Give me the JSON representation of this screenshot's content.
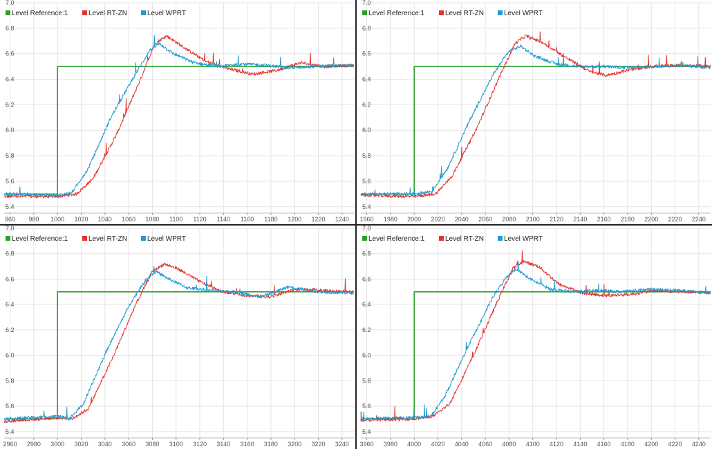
{
  "colors": {
    "reference": "#2ca02c",
    "rtzn": "#e3342f",
    "wprt": "#1f9bd1",
    "grid": "#e4e4e4",
    "divider": "#222222"
  },
  "legend": {
    "reference_label": "Level Reference:1",
    "rtzn_label": "Level RT-ZN",
    "wprt_label": "Level WPRT"
  },
  "chart_data": [
    {
      "type": "line",
      "title": "",
      "xlim": [
        955,
        1250
      ],
      "ylim": [
        5.35,
        7.0
      ],
      "x_ticks": [
        960,
        980,
        1000,
        1020,
        1040,
        1060,
        1080,
        1100,
        1120,
        1140,
        1160,
        1180,
        1200,
        1220,
        1240
      ],
      "y_ticks": [
        5.4,
        5.6,
        5.8,
        6.0,
        6.2,
        6.4,
        6.6,
        6.8,
        7.0
      ],
      "step_time": 1000,
      "series": [
        {
          "name": "Level Reference:1",
          "x": [
            955,
            1000,
            1000,
            1250
          ],
          "y": [
            5.5,
            5.5,
            6.5,
            6.5
          ]
        },
        {
          "name": "Level RT-ZN",
          "x": [
            955,
            1000,
            1016,
            1030,
            1050,
            1070,
            1082,
            1092,
            1105,
            1125,
            1145,
            1165,
            1185,
            1205,
            1225,
            1250
          ],
          "y": [
            5.48,
            5.48,
            5.5,
            5.62,
            5.97,
            6.4,
            6.68,
            6.74,
            6.66,
            6.54,
            6.48,
            6.44,
            6.47,
            6.53,
            6.5,
            6.51
          ]
        },
        {
          "name": "Level WPRT",
          "x": [
            955,
            1000,
            1012,
            1026,
            1045,
            1065,
            1078,
            1086,
            1098,
            1115,
            1135,
            1155,
            1175,
            1195,
            1215,
            1250
          ],
          "y": [
            5.5,
            5.49,
            5.51,
            5.7,
            6.1,
            6.43,
            6.63,
            6.68,
            6.6,
            6.53,
            6.5,
            6.52,
            6.51,
            6.49,
            6.5,
            6.51
          ]
        }
      ]
    },
    {
      "type": "line",
      "title": "",
      "xlim": [
        1955,
        2250
      ],
      "ylim": [
        5.35,
        7.0
      ],
      "x_ticks": [
        1960,
        1980,
        2000,
        2020,
        2040,
        2060,
        2080,
        2100,
        2120,
        2140,
        2160,
        2180,
        2200,
        2220,
        2240
      ],
      "y_ticks": [
        5.4,
        5.6,
        5.8,
        6.0,
        6.2,
        6.4,
        6.6,
        6.8,
        7.0
      ],
      "step_time": 2000,
      "series": [
        {
          "name": "Level Reference:1",
          "x": [
            1955,
            2000,
            2000,
            2250
          ],
          "y": [
            5.5,
            5.5,
            6.5,
            6.5
          ]
        },
        {
          "name": "Level RT-ZN",
          "x": [
            1955,
            2000,
            2018,
            2032,
            2052,
            2072,
            2085,
            2094,
            2108,
            2128,
            2148,
            2162,
            2180,
            2200,
            2225,
            2250
          ],
          "y": [
            5.49,
            5.48,
            5.5,
            5.64,
            6.0,
            6.42,
            6.68,
            6.74,
            6.69,
            6.57,
            6.46,
            6.43,
            6.47,
            6.5,
            6.51,
            6.5
          ]
        },
        {
          "name": "Level WPRT",
          "x": [
            1955,
            2000,
            2015,
            2028,
            2048,
            2068,
            2080,
            2090,
            2102,
            2120,
            2140,
            2160,
            2180,
            2200,
            2225,
            2250
          ],
          "y": [
            5.5,
            5.5,
            5.52,
            5.7,
            6.1,
            6.46,
            6.62,
            6.66,
            6.58,
            6.52,
            6.5,
            6.5,
            6.49,
            6.5,
            6.51,
            6.49
          ]
        }
      ]
    },
    {
      "type": "line",
      "title": "",
      "xlim": [
        2955,
        3250
      ],
      "ylim": [
        5.35,
        7.0
      ],
      "x_ticks": [
        2960,
        2980,
        3000,
        3020,
        3040,
        3060,
        3080,
        3100,
        3120,
        3140,
        3160,
        3180,
        3200,
        3220,
        3240
      ],
      "y_ticks": [
        5.4,
        5.6,
        5.8,
        6.0,
        6.2,
        6.4,
        6.6,
        6.8,
        7.0
      ],
      "step_time": 3000,
      "series": [
        {
          "name": "Level Reference:1",
          "x": [
            2955,
            3000,
            3000,
            3250
          ],
          "y": [
            5.5,
            5.5,
            6.5,
            6.5
          ]
        },
        {
          "name": "Level RT-ZN",
          "x": [
            2955,
            3000,
            3012,
            3026,
            3046,
            3066,
            3080,
            3090,
            3102,
            3120,
            3140,
            3160,
            3180,
            3200,
            3225,
            3250
          ],
          "y": [
            5.48,
            5.51,
            5.5,
            5.58,
            5.97,
            6.4,
            6.66,
            6.72,
            6.68,
            6.58,
            6.5,
            6.47,
            6.46,
            6.52,
            6.51,
            6.5
          ]
        },
        {
          "name": "Level WPRT",
          "x": [
            2955,
            3000,
            3010,
            3022,
            3042,
            3062,
            3075,
            3083,
            3094,
            3110,
            3130,
            3150,
            3172,
            3195,
            3220,
            3250
          ],
          "y": [
            5.5,
            5.52,
            5.5,
            5.62,
            6.05,
            6.42,
            6.6,
            6.66,
            6.6,
            6.53,
            6.51,
            6.5,
            6.46,
            6.54,
            6.5,
            6.49
          ]
        }
      ]
    },
    {
      "type": "line",
      "title": "",
      "xlim": [
        3955,
        4250
      ],
      "ylim": [
        5.35,
        7.0
      ],
      "x_ticks": [
        3960,
        3980,
        4000,
        4020,
        4040,
        4060,
        4080,
        4100,
        4120,
        4140,
        4160,
        4180,
        4200,
        4220,
        4240
      ],
      "y_ticks": [
        5.4,
        5.6,
        5.8,
        6.0,
        6.2,
        6.4,
        6.6,
        6.8,
        7.0
      ],
      "step_time": 4000,
      "series": [
        {
          "name": "Level Reference:1",
          "x": [
            3955,
            4000,
            4000,
            4250
          ],
          "y": [
            5.5,
            5.5,
            6.5,
            6.5
          ]
        },
        {
          "name": "Level RT-ZN",
          "x": [
            3955,
            4000,
            4016,
            4030,
            4050,
            4070,
            4083,
            4092,
            4105,
            4122,
            4142,
            4162,
            4182,
            4202,
            4225,
            4250
          ],
          "y": [
            5.49,
            5.5,
            5.52,
            5.62,
            6.0,
            6.42,
            6.68,
            6.74,
            6.7,
            6.56,
            6.49,
            6.47,
            6.48,
            6.51,
            6.5,
            6.49
          ]
        },
        {
          "name": "Level WPRT",
          "x": [
            3955,
            4000,
            4014,
            4026,
            4046,
            4066,
            4078,
            4086,
            4098,
            4115,
            4135,
            4155,
            4175,
            4200,
            4225,
            4250
          ],
          "y": [
            5.5,
            5.51,
            5.52,
            5.68,
            6.08,
            6.45,
            6.62,
            6.68,
            6.6,
            6.52,
            6.5,
            6.51,
            6.5,
            6.52,
            6.51,
            6.49
          ]
        }
      ]
    }
  ]
}
